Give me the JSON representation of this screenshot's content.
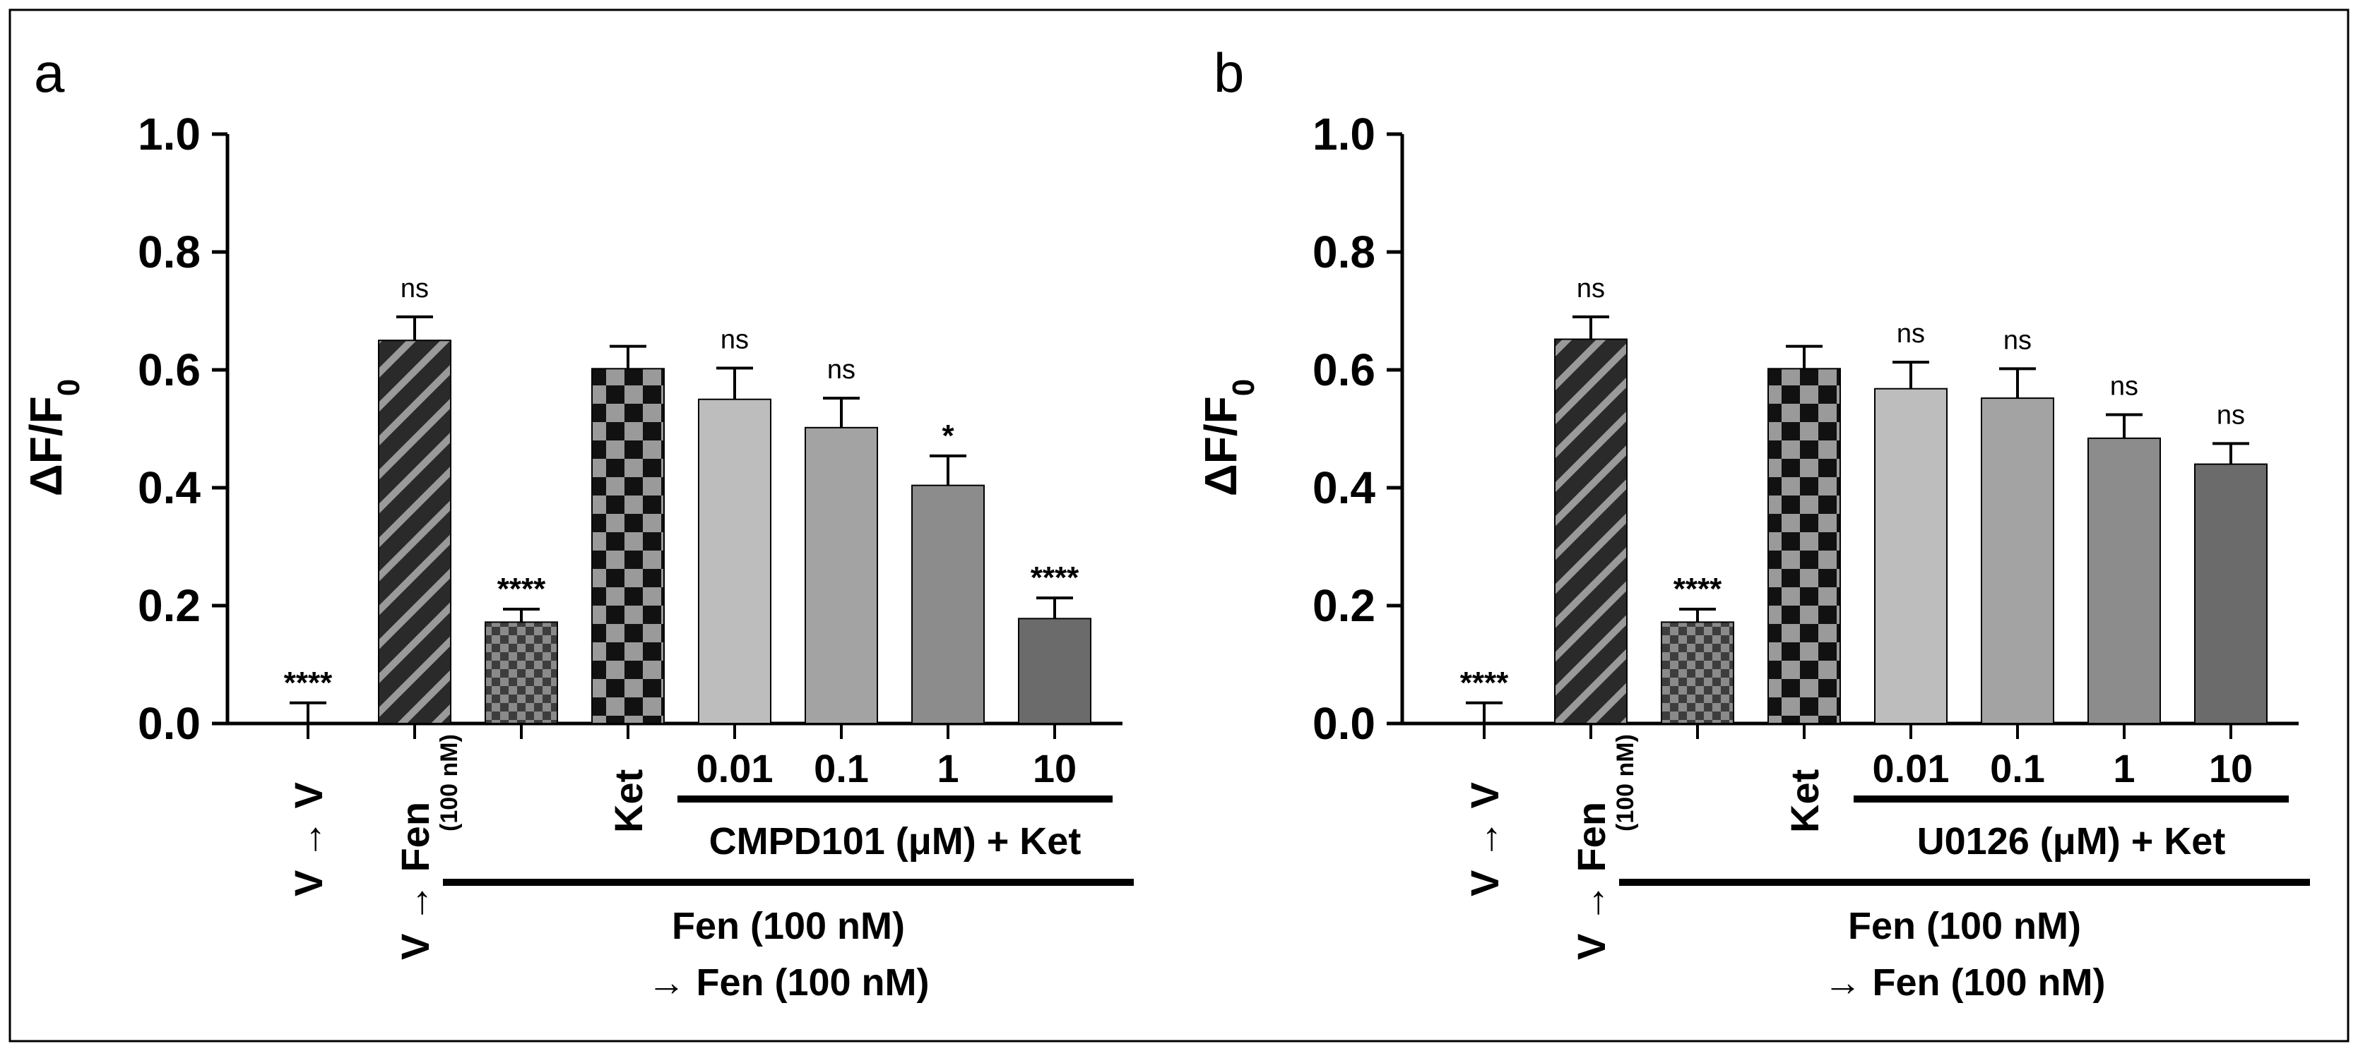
{
  "chart_data": [
    {
      "panel": "a",
      "type": "bar",
      "ylabel": "ΔF/F0",
      "ylim": [
        0,
        1.0
      ],
      "yticks": [
        "0.0",
        "0.2",
        "0.4",
        "0.6",
        "0.8",
        "1.0"
      ],
      "bars": [
        {
          "id": "v-v",
          "label": "V → V",
          "value": 0.0,
          "error": 0.035,
          "sig": "****",
          "fill": "none"
        },
        {
          "id": "v-fen",
          "label": "V → Fen",
          "sublabel": "(100 nM)",
          "value": 0.65,
          "error": 0.04,
          "sig": "ns",
          "fill": "stripes"
        },
        {
          "id": "fen-fen",
          "label": "",
          "value": 0.172,
          "error": 0.022,
          "sig": "****",
          "fill": "smallcheck"
        },
        {
          "id": "ket",
          "label": "Ket",
          "value": 0.602,
          "error": 0.038,
          "sig": "",
          "fill": "bigcheck"
        },
        {
          "id": "c001",
          "label": "0.01",
          "value": 0.55,
          "error": 0.053,
          "sig": "ns",
          "fill": "#bdbdbd"
        },
        {
          "id": "c01",
          "label": "0.1",
          "value": 0.502,
          "error": 0.05,
          "sig": "ns",
          "fill": "#a3a3a3"
        },
        {
          "id": "c1",
          "label": "1",
          "value": 0.404,
          "error": 0.05,
          "sig": "*",
          "fill": "#8c8c8c"
        },
        {
          "id": "c10",
          "label": "10",
          "value": 0.178,
          "error": 0.035,
          "sig": "****",
          "fill": "#6b6b6b"
        }
      ],
      "drug_label": "CMPD101 (μM) + Ket",
      "group_label_line1": "Fen (100 nM)",
      "group_label_line2": "→ Fen (100 nM)"
    },
    {
      "panel": "b",
      "type": "bar",
      "ylabel": "ΔF/F0",
      "ylim": [
        0,
        1.0
      ],
      "yticks": [
        "0.0",
        "0.2",
        "0.4",
        "0.6",
        "0.8",
        "1.0"
      ],
      "bars": [
        {
          "id": "v-v",
          "label": "V → V",
          "value": 0.0,
          "error": 0.035,
          "sig": "****",
          "fill": "none"
        },
        {
          "id": "v-fen",
          "label": "V → Fen",
          "sublabel": "(100 nM)",
          "value": 0.652,
          "error": 0.038,
          "sig": "ns",
          "fill": "stripes"
        },
        {
          "id": "fen-fen",
          "label": "",
          "value": 0.172,
          "error": 0.022,
          "sig": "****",
          "fill": "smallcheck"
        },
        {
          "id": "ket",
          "label": "Ket",
          "value": 0.602,
          "error": 0.038,
          "sig": "",
          "fill": "bigcheck"
        },
        {
          "id": "u001",
          "label": "0.01",
          "value": 0.568,
          "error": 0.045,
          "sig": "ns",
          "fill": "#bdbdbd"
        },
        {
          "id": "u01",
          "label": "0.1",
          "value": 0.552,
          "error": 0.05,
          "sig": "ns",
          "fill": "#a3a3a3"
        },
        {
          "id": "u1",
          "label": "1",
          "value": 0.484,
          "error": 0.04,
          "sig": "ns",
          "fill": "#8c8c8c"
        },
        {
          "id": "u10",
          "label": "10",
          "value": 0.44,
          "error": 0.035,
          "sig": "ns",
          "fill": "#6b6b6b"
        }
      ],
      "drug_label": "U0126 (μM) + Ket",
      "group_label_line1": "Fen (100 nM)",
      "group_label_line2": "→ Fen (100 nM)"
    }
  ]
}
